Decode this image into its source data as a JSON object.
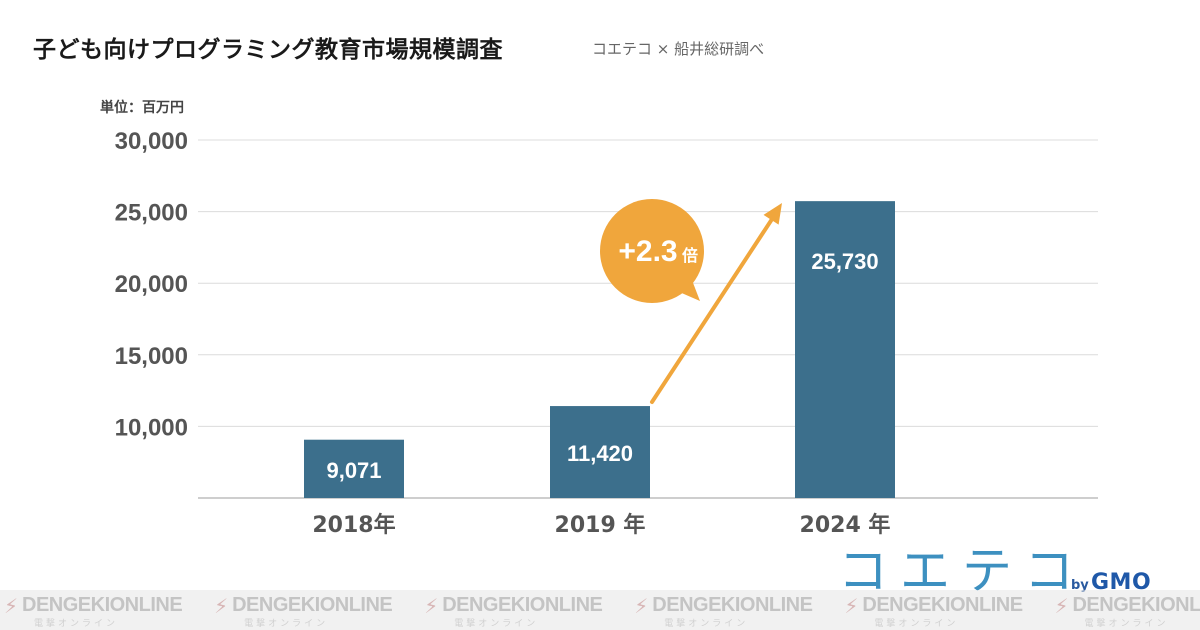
{
  "header": {
    "title": "子ども向けプログラミング教育市場規模調査",
    "source": "コエテコ × 船井総研調べ"
  },
  "chart_data": {
    "type": "bar",
    "unit_label": "単位：百万円",
    "categories": [
      "2018年",
      "2019 年",
      "2024 年"
    ],
    "values": [
      9071,
      11420,
      25730
    ],
    "value_labels": [
      "9,071",
      "11,420",
      "25,730"
    ],
    "y_ticks": [
      "30,000",
      "25,000",
      "20,000",
      "15,000",
      "10,000"
    ],
    "ylim": [
      5000,
      30000
    ],
    "grid": true,
    "bar_color": "#3c6f8c",
    "annotation": {
      "text": "+2.3",
      "suffix": "倍",
      "color": "#f0a63c",
      "arrow_from_category": "2019 年",
      "arrow_to_category": "2024 年"
    }
  },
  "branding": {
    "logo": "コエテコ",
    "by": "by",
    "company": "GMO"
  },
  "watermark": {
    "text": "DENGEKIONLINE",
    "subtext": "電撃オンライン",
    "icon": "lightning-bolt-icon"
  }
}
